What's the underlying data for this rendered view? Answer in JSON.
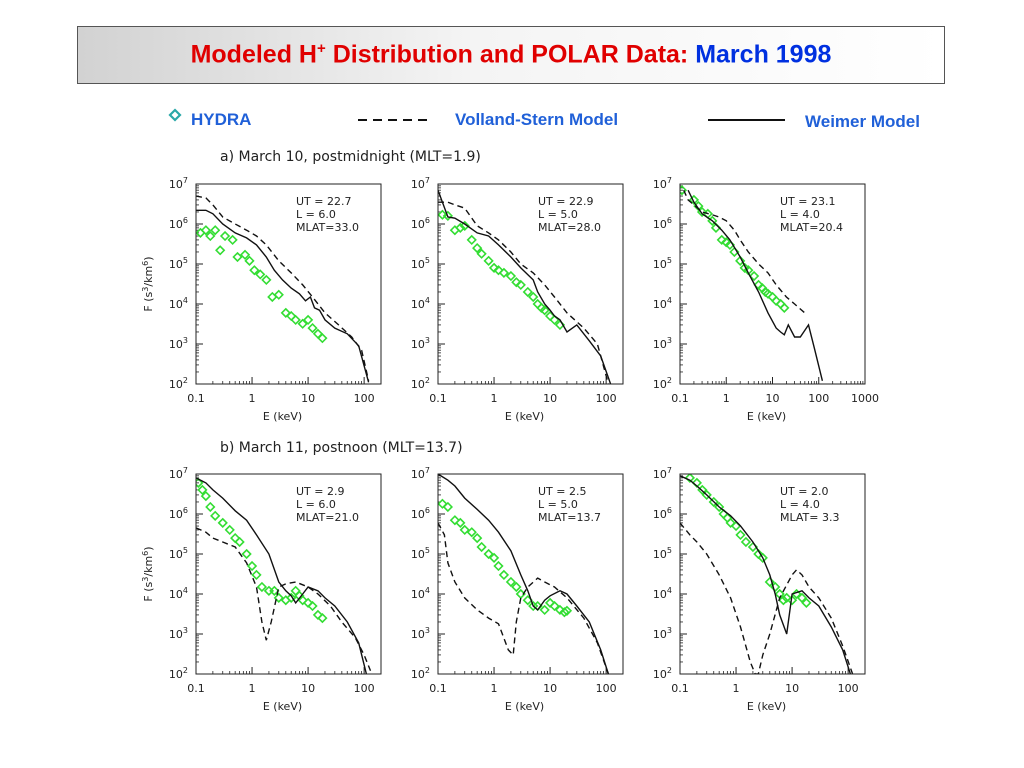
{
  "title": {
    "main": "Modeled H",
    "superscript": "+",
    "rest": " Distribution and POLAR Data: ",
    "highlight": "March 1998"
  },
  "legend": {
    "hydra": "HYDRA",
    "volland": "Volland-Stern Model",
    "weimer": "Weimer Model"
  },
  "colors": {
    "title": "#e00000",
    "highlight": "#0030e0",
    "legend_text": "#2060d8",
    "hydra": "#33dd33"
  },
  "chart_data": [
    {
      "type": "scatter",
      "row": "a",
      "panel_label": "a) March 10, postmidnight (MLT=1.9)",
      "info": [
        "UT = 22.7",
        "L = 6.0",
        "MLAT=33.0"
      ],
      "xlabel": "E (keV)",
      "ylabel": "F (s3/km6)",
      "xscale": "log",
      "yscale": "log",
      "xlim": [
        0.1,
        200
      ],
      "ylim": [
        100,
        10000000
      ],
      "xticks": [
        "0.1",
        "1",
        "10",
        "100"
      ],
      "yticks": [
        "2",
        "3",
        "4",
        "5",
        "6",
        "7"
      ],
      "series": [
        {
          "style": "diamond",
          "x": [
            0.12,
            0.15,
            0.18,
            0.22,
            0.27,
            0.33,
            0.45,
            0.55,
            0.75,
            0.9,
            1.1,
            1.4,
            1.8,
            2.3,
            3,
            4,
            5,
            6,
            8,
            10,
            12,
            15,
            18
          ],
          "y": [
            600000,
            700000,
            500000,
            700000,
            220000,
            500000,
            400000,
            150000,
            170000,
            120000,
            70000,
            55000,
            40000,
            15000,
            17000,
            6000,
            5000,
            4000,
            3200,
            4000,
            2500,
            1800,
            1400
          ]
        },
        {
          "style": "dashed",
          "x": [
            0.1,
            0.15,
            0.2,
            0.3,
            0.5,
            0.8,
            1.2,
            1.8,
            3,
            5,
            8,
            12,
            20,
            35,
            60,
            90,
            120
          ],
          "y": [
            5000000,
            4500000,
            3000000,
            1500000,
            1000000,
            700000,
            500000,
            300000,
            120000,
            60000,
            30000,
            15000,
            6000,
            3000,
            1500,
            700,
            120
          ]
        },
        {
          "style": "solid",
          "x": [
            0.1,
            0.15,
            0.2,
            0.3,
            0.5,
            0.8,
            1.2,
            1.8,
            2.5,
            3.5,
            5,
            7,
            9,
            11,
            13,
            16,
            20,
            30,
            50,
            80,
            120
          ],
          "y": [
            2200000,
            2200000,
            1800000,
            1000000,
            600000,
            450000,
            300000,
            150000,
            70000,
            40000,
            25000,
            18000,
            12000,
            15000,
            8000,
            7000,
            4000,
            2500,
            1800,
            900,
            110
          ]
        }
      ]
    },
    {
      "type": "scatter",
      "row": "a",
      "info": [
        "UT = 22.9",
        "L = 5.0",
        "MLAT=28.0"
      ],
      "xlabel": "E (keV)",
      "xscale": "log",
      "yscale": "log",
      "xlim": [
        0.1,
        200
      ],
      "ylim": [
        100,
        10000000
      ],
      "xticks": [
        "0.1",
        "1",
        "10",
        "100"
      ],
      "yticks": [
        "2",
        "3",
        "4",
        "5",
        "6",
        "7"
      ],
      "series": [
        {
          "style": "diamond",
          "x": [
            0.12,
            0.15,
            0.2,
            0.25,
            0.3,
            0.4,
            0.5,
            0.6,
            0.8,
            1,
            1.2,
            1.5,
            2,
            2.5,
            3,
            4,
            5,
            6,
            7,
            8,
            10,
            12,
            15
          ],
          "y": [
            1700000,
            1600000,
            700000,
            800000,
            900000,
            400000,
            250000,
            180000,
            120000,
            80000,
            70000,
            60000,
            50000,
            35000,
            30000,
            20000,
            15000,
            10000,
            8000,
            7000,
            5000,
            4000,
            3000
          ]
        },
        {
          "style": "dashed",
          "x": [
            0.1,
            0.15,
            0.2,
            0.3,
            0.5,
            0.8,
            1.2,
            2,
            3,
            5,
            8,
            12,
            20,
            40,
            70,
            110
          ],
          "y": [
            3500000,
            3500000,
            3000000,
            2500000,
            900000,
            600000,
            400000,
            200000,
            100000,
            60000,
            30000,
            15000,
            6000,
            2500,
            1000,
            100
          ]
        },
        {
          "style": "solid",
          "x": [
            0.1,
            0.15,
            0.2,
            0.3,
            0.5,
            0.8,
            1.2,
            2,
            3,
            5,
            6,
            8,
            10,
            12,
            15,
            20,
            30,
            50,
            80,
            120
          ],
          "y": [
            7000000,
            1500000,
            1400000,
            1000000,
            600000,
            500000,
            300000,
            150000,
            80000,
            40000,
            20000,
            10000,
            7000,
            5000,
            4000,
            2000,
            3000,
            1200,
            500,
            100
          ]
        }
      ]
    },
    {
      "type": "scatter",
      "row": "a",
      "info": [
        "UT = 23.1",
        "L = 4.0",
        "MLAT=20.4"
      ],
      "xlabel": "E (keV)",
      "xscale": "log",
      "yscale": "log",
      "xlim": [
        0.1,
        1000
      ],
      "ylim": [
        100,
        10000000
      ],
      "xticks": [
        "0.1",
        "1",
        "10",
        "100",
        "1000"
      ],
      "yticks": [
        "2",
        "3",
        "4",
        "5",
        "6",
        "7"
      ],
      "series": [
        {
          "style": "diamond",
          "x": [
            0.11,
            0.2,
            0.25,
            0.3,
            0.4,
            0.5,
            0.6,
            0.8,
            1,
            1.2,
            1.5,
            2,
            2.5,
            3,
            4,
            5,
            6,
            7,
            8,
            10,
            12,
            15,
            18
          ],
          "y": [
            7000000,
            4000000,
            2800000,
            2000000,
            1800000,
            1200000,
            800000,
            400000,
            350000,
            300000,
            200000,
            120000,
            80000,
            70000,
            50000,
            30000,
            25000,
            20000,
            18000,
            15000,
            12000,
            10000,
            8000
          ]
        },
        {
          "style": "dashed",
          "x": [
            0.12,
            0.15,
            0.2,
            0.3,
            0.5,
            0.7,
            1,
            1.5,
            2,
            3,
            5,
            8,
            12,
            20,
            30,
            50
          ],
          "y": [
            7000000,
            4000000,
            3000000,
            2000000,
            1700000,
            1500000,
            1200000,
            700000,
            400000,
            200000,
            100000,
            60000,
            30000,
            15000,
            10000,
            6000
          ]
        },
        {
          "style": "solid",
          "x": [
            0.15,
            0.2,
            0.3,
            0.5,
            0.8,
            1.2,
            2,
            3,
            5,
            8,
            12,
            15,
            18,
            22,
            30,
            40,
            60,
            80,
            120
          ],
          "y": [
            7000000,
            3500000,
            1800000,
            1200000,
            700000,
            400000,
            150000,
            60000,
            20000,
            6000,
            2500,
            2000,
            1700,
            3000,
            1500,
            1500,
            3000,
            800,
            120
          ]
        }
      ]
    },
    {
      "type": "scatter",
      "row": "b",
      "panel_label": "b) March 11, postnoon (MLT=13.7)",
      "info": [
        "UT =  2.9",
        "L = 6.0",
        "MLAT=21.0"
      ],
      "xlabel": "E (keV)",
      "ylabel": "F (s3/km6)",
      "xscale": "log",
      "yscale": "log",
      "xlim": [
        0.1,
        200
      ],
      "ylim": [
        100,
        10000000
      ],
      "xticks": [
        "0.1",
        "1",
        "10",
        "100"
      ],
      "yticks": [
        "2",
        "3",
        "4",
        "5",
        "6",
        "7"
      ],
      "series": [
        {
          "style": "diamond",
          "x": [
            0.11,
            0.13,
            0.15,
            0.18,
            0.22,
            0.3,
            0.4,
            0.5,
            0.6,
            0.8,
            1,
            1.2,
            1.5,
            2,
            2.5,
            3,
            4,
            5,
            6,
            7,
            8,
            10,
            12,
            15,
            18
          ],
          "y": [
            6000000,
            4000000,
            2800000,
            1500000,
            900000,
            600000,
            400000,
            250000,
            200000,
            100000,
            50000,
            30000,
            15000,
            12000,
            12000,
            8000,
            7000,
            8000,
            12000,
            9000,
            7000,
            6000,
            5000,
            3000,
            2500
          ]
        },
        {
          "style": "dashed",
          "x": [
            0.1,
            0.15,
            0.2,
            0.3,
            0.5,
            0.8,
            1.2,
            1.5,
            1.8,
            2.2,
            3,
            4,
            6,
            10,
            15,
            25,
            40,
            70,
            100,
            130
          ],
          "y": [
            450000,
            350000,
            250000,
            200000,
            150000,
            60000,
            15000,
            2000,
            700,
            2000,
            15000,
            18000,
            20000,
            15000,
            10000,
            5000,
            2000,
            800,
            300,
            120
          ]
        },
        {
          "style": "solid",
          "x": [
            0.1,
            0.15,
            0.2,
            0.3,
            0.5,
            0.8,
            1.2,
            2,
            3,
            4,
            5,
            6,
            8,
            10,
            15,
            20,
            30,
            50,
            80,
            110
          ],
          "y": [
            8000000,
            6000000,
            4000000,
            2500000,
            1200000,
            700000,
            300000,
            100000,
            20000,
            12000,
            9000,
            6000,
            10000,
            15000,
            12000,
            8000,
            5000,
            2000,
            600,
            100
          ]
        }
      ]
    },
    {
      "type": "scatter",
      "row": "b",
      "info": [
        "UT =  2.5",
        "L = 5.0",
        "MLAT=13.7"
      ],
      "xlabel": "E (keV)",
      "xscale": "log",
      "yscale": "log",
      "xlim": [
        0.1,
        200
      ],
      "ylim": [
        100,
        10000000
      ],
      "xticks": [
        "0.1",
        "1",
        "10",
        "100"
      ],
      "yticks": [
        "2",
        "3",
        "4",
        "5",
        "6",
        "7"
      ],
      "series": [
        {
          "style": "diamond",
          "x": [
            0.12,
            0.15,
            0.2,
            0.25,
            0.3,
            0.4,
            0.5,
            0.6,
            0.8,
            1,
            1.2,
            1.5,
            2,
            2.5,
            3,
            4,
            5,
            6,
            8,
            10,
            12,
            15,
            18,
            20
          ],
          "y": [
            1800000,
            1500000,
            700000,
            600000,
            400000,
            350000,
            250000,
            150000,
            100000,
            80000,
            50000,
            30000,
            20000,
            15000,
            10000,
            7000,
            5000,
            5000,
            4000,
            6000,
            5000,
            4000,
            3500,
            3800
          ]
        },
        {
          "style": "dashed",
          "x": [
            0.1,
            0.13,
            0.15,
            0.2,
            0.3,
            0.5,
            0.8,
            1.2,
            1.8,
            2.2,
            2.5,
            3,
            4,
            6,
            8,
            12,
            20,
            40,
            70,
            110
          ],
          "y": [
            600000,
            300000,
            60000,
            20000,
            8000,
            4000,
            2500,
            1800,
            400,
            300,
            2000,
            8000,
            15000,
            25000,
            20000,
            15000,
            8000,
            2500,
            600,
            100
          ]
        },
        {
          "style": "solid",
          "x": [
            0.1,
            0.15,
            0.2,
            0.3,
            0.5,
            0.8,
            1.2,
            2,
            3,
            4,
            5,
            6,
            8,
            10,
            15,
            20,
            30,
            50,
            80,
            110
          ],
          "y": [
            10000000,
            7000000,
            5000000,
            2500000,
            1300000,
            700000,
            350000,
            120000,
            30000,
            12000,
            5000,
            4000,
            7000,
            9000,
            12000,
            10000,
            5000,
            2000,
            400,
            100
          ]
        }
      ]
    },
    {
      "type": "scatter",
      "row": "b",
      "info": [
        "UT =  2.0",
        "L = 4.0",
        "MLAT= 3.3"
      ],
      "xlabel": "E (keV)",
      "xscale": "log",
      "yscale": "log",
      "xlim": [
        0.1,
        200
      ],
      "ylim": [
        100,
        10000000
      ],
      "xticks": [
        "0.1",
        "1",
        "10",
        "100"
      ],
      "yticks": [
        "2",
        "3",
        "4",
        "5",
        "6",
        "7"
      ],
      "series": [
        {
          "style": "diamond",
          "x": [
            0.15,
            0.2,
            0.25,
            0.3,
            0.4,
            0.5,
            0.6,
            0.7,
            0.8,
            1,
            1.2,
            1.5,
            2,
            2.5,
            3,
            4,
            5,
            6,
            7,
            8,
            10,
            12,
            15,
            18
          ],
          "y": [
            8000000,
            6000000,
            4000000,
            3000000,
            2000000,
            1500000,
            1000000,
            800000,
            600000,
            500000,
            300000,
            200000,
            150000,
            100000,
            80000,
            20000,
            15000,
            10000,
            7000,
            8000,
            7000,
            10000,
            8000,
            6000
          ]
        },
        {
          "style": "dashed",
          "x": [
            0.1,
            0.15,
            0.2,
            0.3,
            0.5,
            0.8,
            1.2,
            1.8,
            2.2,
            2.5,
            3,
            4,
            6,
            10,
            12,
            15,
            20,
            30,
            50,
            80,
            120
          ],
          "y": [
            600000,
            300000,
            200000,
            100000,
            30000,
            8000,
            1500,
            200,
            100,
            100,
            300,
            1000,
            8000,
            30000,
            40000,
            30000,
            15000,
            8000,
            2500,
            500,
            100
          ]
        },
        {
          "style": "solid",
          "x": [
            0.1,
            0.15,
            0.2,
            0.3,
            0.5,
            0.8,
            1.2,
            2,
            3,
            4,
            5,
            6,
            8,
            10,
            15,
            20,
            30,
            50,
            80,
            110
          ],
          "y": [
            9000000,
            7000000,
            5000000,
            3000000,
            1500000,
            900000,
            500000,
            200000,
            80000,
            30000,
            10000,
            3000,
            1000,
            10000,
            12000,
            8000,
            5000,
            1500,
            400,
            100
          ]
        }
      ]
    }
  ]
}
